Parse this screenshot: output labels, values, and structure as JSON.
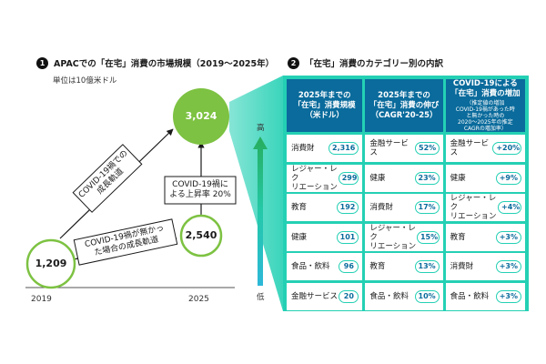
{
  "section1": {
    "number": "1",
    "title": "APACでの「在宅」消費の市場規模（2019～2025年）",
    "unit": "単位は10億米ドル"
  },
  "section2": {
    "number": "2",
    "title": "「在宅」消費のカテゴリー別の内訳"
  },
  "diagram": {
    "value_2019": "1,209",
    "value_2025_base": "2,540",
    "value_2025_covid": "3,024",
    "label_covid_line1": "COVID-19禍での",
    "label_covid_line2": "成長軌道",
    "label_nocovid_line1": "COVID-19禍が無かっ",
    "label_nocovid_line2": "た場合の成長軌道",
    "label_rate_line1": "COVID-19禍に",
    "label_rate_line2": "よる上昇率 20%",
    "year_start": "2019",
    "year_end": "2025",
    "scale_high": "高",
    "scale_low": "低",
    "colors": {
      "green": "#7dc242",
      "teal": "#24d0b4",
      "navy": "#0a6b9c"
    }
  },
  "table": {
    "headers": [
      {
        "l1": "2025年までの",
        "l2": "「在宅」消費規模",
        "l3": "（米ドル）"
      },
      {
        "l1": "2025年までの",
        "l2": "「在宅」消費の伸び",
        "l3": "（CAGR'20-25）"
      },
      {
        "l1": "COVID-19による",
        "l2": "「在宅」消費の増加",
        "sub1": "（推定値の増加",
        "sub2": "COVID-19禍があった時",
        "sub3": "と無かった時の",
        "sub4": "2020～2025年の推定",
        "sub5": "CAGRの増加率）"
      }
    ],
    "rows": [
      {
        "a": {
          "l1": "消費財",
          "l2": "",
          "v": "2,316"
        },
        "b": {
          "l1": "金融サービス",
          "l2": "",
          "v": "52%"
        },
        "c": {
          "l1": "金融サービス",
          "l2": "",
          "v": "+20%"
        }
      },
      {
        "a": {
          "l1": "レジャー・レク",
          "l2": "リエーション",
          "v": "299"
        },
        "b": {
          "l1": "健康",
          "l2": "",
          "v": "23%"
        },
        "c": {
          "l1": "健康",
          "l2": "",
          "v": "+9%"
        }
      },
      {
        "a": {
          "l1": "教育",
          "l2": "",
          "v": "192"
        },
        "b": {
          "l1": "消費財",
          "l2": "",
          "v": "17%"
        },
        "c": {
          "l1": "レジャー・レク",
          "l2": "リエーション",
          "v": "+4%"
        }
      },
      {
        "a": {
          "l1": "健康",
          "l2": "",
          "v": "101"
        },
        "b": {
          "l1": "レジャー・レク",
          "l2": "リエーション",
          "v": "15%"
        },
        "c": {
          "l1": "教育",
          "l2": "",
          "v": "+3%"
        }
      },
      {
        "a": {
          "l1": "食品・飲料",
          "l2": "",
          "v": "96"
        },
        "b": {
          "l1": "教育",
          "l2": "",
          "v": "13%"
        },
        "c": {
          "l1": "消費財",
          "l2": "",
          "v": "+3%"
        }
      },
      {
        "a": {
          "l1": "金融サービス",
          "l2": "",
          "v": "20"
        },
        "b": {
          "l1": "食品・飲料",
          "l2": "",
          "v": "10%"
        },
        "c": {
          "l1": "食品・飲料",
          "l2": "",
          "v": "+3%"
        }
      }
    ]
  }
}
